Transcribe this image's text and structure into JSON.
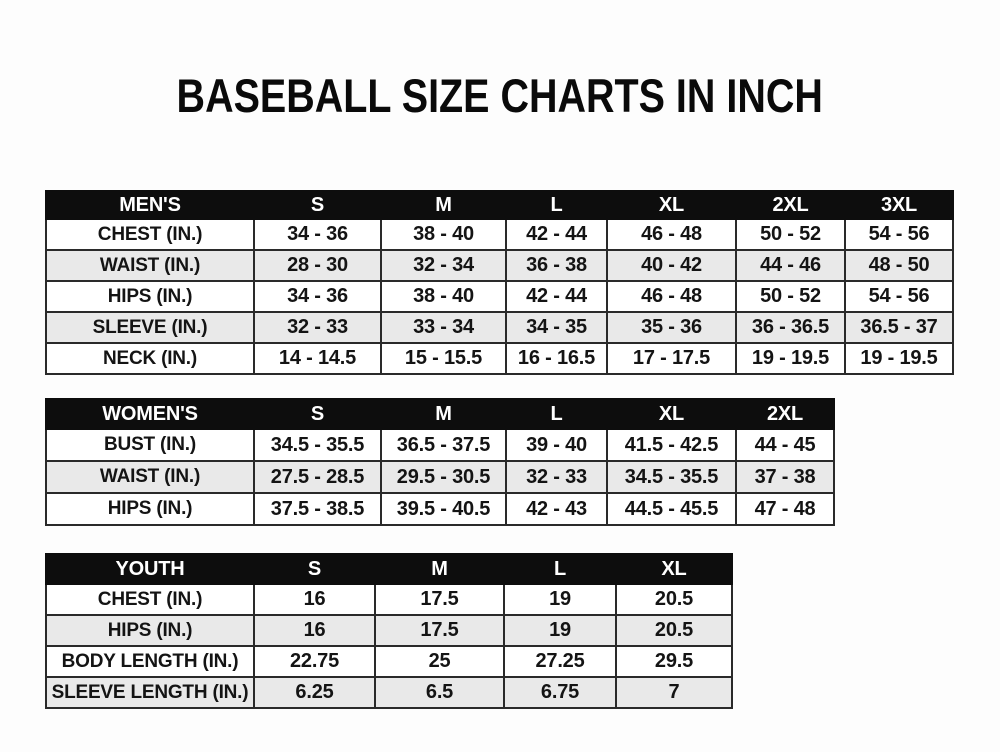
{
  "title": "BASEBALL SIZE CHARTS IN INCH",
  "colors": {
    "header_bg": "#0d0d0d",
    "header_text": "#ffffff",
    "row_alt": "#e9e9e9",
    "border": "#2a2a2a",
    "text": "#141414",
    "page_bg": "#fdfdfd"
  },
  "tables": {
    "mens": {
      "header": [
        "MEN'S",
        "S",
        "M",
        "L",
        "XL",
        "2XL",
        "3XL"
      ],
      "rows": [
        [
          "CHEST (IN.)",
          "34 - 36",
          "38 - 40",
          "42 - 44",
          "46 - 48",
          "50 - 52",
          "54 - 56"
        ],
        [
          "WAIST (IN.)",
          "28 - 30",
          "32 - 34",
          "36 - 38",
          "40 - 42",
          "44 - 46",
          "48 - 50"
        ],
        [
          "HIPS (IN.)",
          "34 - 36",
          "38 - 40",
          "42 - 44",
          "46 - 48",
          "50 - 52",
          "54 - 56"
        ],
        [
          "SLEEVE (IN.)",
          "32 - 33",
          "33 - 34",
          "34 - 35",
          "35 - 36",
          "36 - 36.5",
          "36.5 - 37"
        ],
        [
          "NECK (IN.)",
          "14 - 14.5",
          "15 - 15.5",
          "16 - 16.5",
          "17 - 17.5",
          "19 - 19.5",
          "19 - 19.5"
        ]
      ]
    },
    "womens": {
      "header": [
        "WOMEN'S",
        "S",
        "M",
        "L",
        "XL",
        "2XL"
      ],
      "rows": [
        [
          "BUST (IN.)",
          "34.5 - 35.5",
          "36.5 - 37.5",
          "39 - 40",
          "41.5 - 42.5",
          "44 - 45"
        ],
        [
          "WAIST (IN.)",
          "27.5 - 28.5",
          "29.5 - 30.5",
          "32 - 33",
          "34.5 - 35.5",
          "37 - 38"
        ],
        [
          "HIPS (IN.)",
          "37.5 - 38.5",
          "39.5 - 40.5",
          "42 - 43",
          "44.5 - 45.5",
          "47 - 48"
        ]
      ]
    },
    "youth": {
      "header": [
        "YOUTH",
        "S",
        "M",
        "L",
        "XL"
      ],
      "rows": [
        [
          "CHEST (IN.)",
          "16",
          "17.5",
          "19",
          "20.5"
        ],
        [
          "HIPS (IN.)",
          "16",
          "17.5",
          "19",
          "20.5"
        ],
        [
          "BODY LENGTH (IN.)",
          "22.75",
          "25",
          "27.25",
          "29.5"
        ],
        [
          "SLEEVE LENGTH (IN.)",
          "6.25",
          "6.5",
          "6.75",
          "7"
        ]
      ]
    }
  }
}
